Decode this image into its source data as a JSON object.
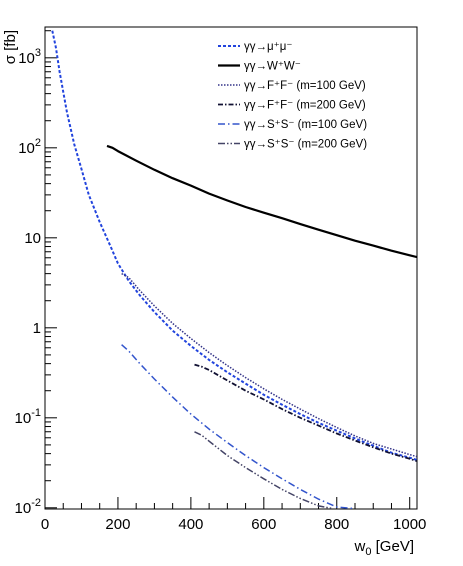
{
  "chart_data": {
    "type": "line",
    "xlabel": "w",
    "xlabel_sub": "0",
    "xlabel_unit": " [GeV]",
    "ylabel": "σ [fb]",
    "xlim": [
      0,
      1020
    ],
    "ylim": [
      0.0097,
      2200
    ],
    "yscale": "log",
    "grid": false,
    "legend_position": "top-right",
    "x_ticks": [
      {
        "value": 0,
        "label": "0"
      },
      {
        "value": 200,
        "label": "200"
      },
      {
        "value": 400,
        "label": "400"
      },
      {
        "value": 600,
        "label": "600"
      },
      {
        "value": 800,
        "label": "800"
      },
      {
        "value": 1000,
        "label": "1000"
      }
    ],
    "y_ticks": [
      {
        "value": 0.01,
        "base": "10",
        "exp": "-2"
      },
      {
        "value": 0.1,
        "base": "10",
        "exp": "-1"
      },
      {
        "value": 1,
        "base": "1",
        "exp": ""
      },
      {
        "value": 10,
        "base": "10",
        "exp": ""
      },
      {
        "value": 100,
        "base": "10",
        "exp": "2"
      },
      {
        "value": 1000,
        "base": "10",
        "exp": "3"
      }
    ],
    "series": [
      {
        "name": "γγ→μ⁺μ⁻",
        "color": "#2244dd",
        "dash": "3,2",
        "width": 2,
        "x": [
          20,
          30,
          40,
          60,
          80,
          100,
          120,
          150,
          180,
          200,
          230,
          260,
          300,
          350,
          400,
          450,
          500,
          550,
          600,
          650,
          700,
          750,
          800,
          850,
          900,
          950,
          1000,
          1020
        ],
        "y": [
          2000,
          1300,
          700,
          250,
          110,
          58,
          30,
          15,
          8,
          5.2,
          3.3,
          2.3,
          1.5,
          0.93,
          0.63,
          0.44,
          0.32,
          0.24,
          0.18,
          0.14,
          0.11,
          0.088,
          0.072,
          0.059,
          0.049,
          0.041,
          0.036,
          0.034
        ]
      },
      {
        "name": "γγ→W⁺W⁻",
        "color": "#000000",
        "dash": "",
        "width": 2.2,
        "x": [
          170,
          185,
          200,
          250,
          300,
          350,
          400,
          450,
          500,
          550,
          600,
          650,
          700,
          750,
          800,
          850,
          900,
          950,
          1000,
          1020
        ],
        "y": [
          105,
          100,
          92,
          72,
          57,
          46,
          38,
          31,
          26,
          22,
          19,
          16.5,
          14.2,
          12.3,
          10.7,
          9.3,
          8.2,
          7.2,
          6.4,
          6.1
        ]
      },
      {
        "name": "γγ→F⁺F⁻ (m=100 GeV)",
        "color": "#333388",
        "dash": "1.5,1.5",
        "width": 1.5,
        "x": [
          210,
          230,
          260,
          300,
          350,
          400,
          450,
          500,
          550,
          600,
          650,
          700,
          750,
          800,
          850,
          900,
          950,
          1000,
          1020
        ],
        "y": [
          4.0,
          3.6,
          2.6,
          1.75,
          1.12,
          0.76,
          0.53,
          0.38,
          0.28,
          0.21,
          0.16,
          0.125,
          0.098,
          0.078,
          0.063,
          0.052,
          0.045,
          0.039,
          0.037
        ]
      },
      {
        "name": "γγ→F⁺F⁻ (m=200 GeV)",
        "color": "#111133",
        "dash": "5,2,1.5,2",
        "width": 1.8,
        "x": [
          410,
          430,
          450,
          500,
          550,
          600,
          650,
          700,
          750,
          800,
          850,
          900,
          950,
          1000,
          1020
        ],
        "y": [
          0.39,
          0.37,
          0.34,
          0.26,
          0.2,
          0.16,
          0.125,
          0.1,
          0.082,
          0.067,
          0.056,
          0.047,
          0.04,
          0.035,
          0.033
        ]
      },
      {
        "name": "γγ→S⁺S⁻ (m=100 GeV)",
        "color": "#3355cc",
        "dash": "7,3,1.5,3",
        "width": 1.5,
        "x": [
          210,
          230,
          260,
          300,
          350,
          400,
          450,
          500,
          550,
          600,
          650,
          700,
          750,
          800,
          850
        ],
        "y": [
          0.65,
          0.55,
          0.4,
          0.27,
          0.17,
          0.11,
          0.075,
          0.053,
          0.038,
          0.028,
          0.021,
          0.016,
          0.0125,
          0.0102,
          0.0098
        ]
      },
      {
        "name": "γγ→S⁺S⁻ (m=200 GeV)",
        "color": "#444466",
        "dash": "7,2,1.5,2,1.5,2",
        "width": 1.5,
        "x": [
          410,
          430,
          450,
          500,
          550,
          600,
          650,
          700,
          750,
          790
        ],
        "y": [
          0.07,
          0.064,
          0.055,
          0.038,
          0.028,
          0.021,
          0.016,
          0.0127,
          0.0105,
          0.0098
        ]
      }
    ]
  }
}
